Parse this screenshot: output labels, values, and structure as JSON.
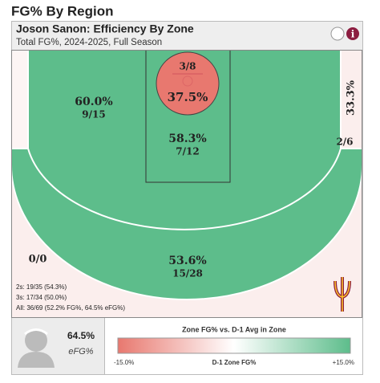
{
  "title": "FG% By Region",
  "card": {
    "title": "Joson Sanon: Efficiency By Zone",
    "subtitle": "Total FG%, 2024-2025, Full Season",
    "info_icon": "i"
  },
  "zones": {
    "rim": {
      "pct": "37.5%",
      "made": "3/8",
      "color": "#e8786f"
    },
    "paint": {
      "pct": "58.3%",
      "made": "7/12",
      "color": "#5dbd8b"
    },
    "left_mid": {
      "pct": "60.0%",
      "made": "9/15",
      "color": "#5dbd8b"
    },
    "right_corner": {
      "pct": "33.3%",
      "made": "2/6",
      "color": "#fbeeed"
    },
    "left_corner": {
      "made": "0/0",
      "color": "#fbeeed"
    },
    "top_three": {
      "pct": "53.6%",
      "made": "15/28",
      "color": "#5dbd8b"
    }
  },
  "stats": [
    "2s: 19/35 (54.3%)",
    "3s: 17/34 (50.0%)",
    "All: 36/69 (52.2% FG%, 64.5% eFG%)"
  ],
  "player": {
    "value": "64.5%",
    "label": "eFG%"
  },
  "legend": {
    "title": "Zone FG% vs. D-1 Avg in Zone",
    "min": "-15.0%",
    "mid": "D-1 Zone FG%",
    "max": "+15.0%",
    "colors": [
      "#e8786f",
      "#ffffff",
      "#5dbd8b"
    ]
  }
}
